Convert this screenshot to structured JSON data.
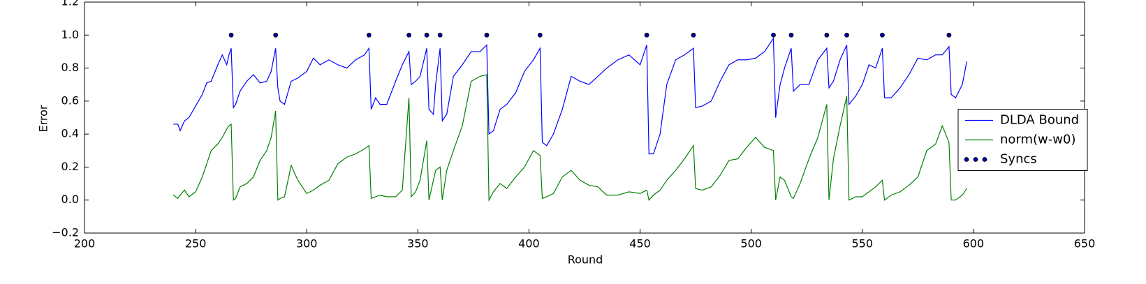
{
  "chart_data": {
    "type": "line",
    "xlabel": "Round",
    "ylabel": "Error",
    "xlim": [
      200,
      650
    ],
    "ylim": [
      -0.2,
      1.2
    ],
    "xticks": [
      200,
      250,
      300,
      350,
      400,
      450,
      500,
      550,
      600,
      650
    ],
    "yticks": [
      {
        "value": -0.2,
        "label": "−0.2"
      },
      {
        "value": 0,
        "label": "0.0"
      },
      0.2,
      0.4,
      0.6,
      0.8,
      {
        "value": 1,
        "label": "1.0"
      },
      1.2
    ],
    "legend": "center right",
    "x": [
      240,
      242,
      243,
      245,
      247,
      250,
      253,
      255,
      257,
      260,
      262,
      264,
      265,
      266,
      267,
      268,
      270,
      273,
      276,
      279,
      282,
      284,
      286,
      287,
      288,
      290,
      293,
      296,
      300,
      303,
      306,
      310,
      314,
      318,
      322,
      326,
      328,
      329,
      331,
      333,
      336,
      340,
      343,
      346,
      347,
      349,
      351,
      354,
      355,
      357,
      358,
      360,
      361,
      363,
      366,
      370,
      374,
      378,
      381,
      382,
      384,
      387,
      390,
      394,
      398,
      402,
      405,
      406,
      408,
      411,
      415,
      419,
      423,
      427,
      431,
      435,
      440,
      445,
      450,
      453,
      454,
      456,
      459,
      462,
      466,
      470,
      474,
      475,
      478,
      482,
      486,
      490,
      494,
      498,
      502,
      506,
      510,
      511,
      513,
      515,
      518,
      519,
      522,
      526,
      530,
      534,
      535,
      537,
      540,
      543,
      544,
      547,
      550,
      553,
      556,
      559,
      560,
      563,
      567,
      571,
      575,
      579,
      583,
      586,
      589,
      590,
      592,
      595,
      597
    ],
    "series": [
      {
        "name": "DLDA Bound",
        "color": "#0000ff",
        "values": [
          0.46,
          0.46,
          0.42,
          0.48,
          0.5,
          0.57,
          0.64,
          0.71,
          0.72,
          0.82,
          0.88,
          0.82,
          0.88,
          0.92,
          0.56,
          0.58,
          0.66,
          0.72,
          0.76,
          0.71,
          0.72,
          0.78,
          0.92,
          0.68,
          0.6,
          0.58,
          0.72,
          0.74,
          0.78,
          0.86,
          0.82,
          0.85,
          0.82,
          0.8,
          0.85,
          0.88,
          0.92,
          0.55,
          0.62,
          0.58,
          0.58,
          0.72,
          0.82,
          0.9,
          0.7,
          0.72,
          0.75,
          0.92,
          0.55,
          0.52,
          0.7,
          0.92,
          0.48,
          0.52,
          0.75,
          0.82,
          0.9,
          0.9,
          0.94,
          0.4,
          0.42,
          0.55,
          0.58,
          0.65,
          0.78,
          0.85,
          0.92,
          0.35,
          0.33,
          0.4,
          0.55,
          0.75,
          0.72,
          0.7,
          0.75,
          0.8,
          0.85,
          0.88,
          0.82,
          0.94,
          0.28,
          0.28,
          0.4,
          0.7,
          0.85,
          0.88,
          0.92,
          0.56,
          0.57,
          0.6,
          0.72,
          0.82,
          0.85,
          0.85,
          0.86,
          0.9,
          0.98,
          0.5,
          0.7,
          0.8,
          0.92,
          0.66,
          0.7,
          0.7,
          0.85,
          0.92,
          0.68,
          0.72,
          0.85,
          0.94,
          0.58,
          0.63,
          0.7,
          0.82,
          0.8,
          0.92,
          0.62,
          0.62,
          0.68,
          0.76,
          0.86,
          0.85,
          0.88,
          0.88,
          0.93,
          0.64,
          0.62,
          0.7,
          0.84
        ]
      },
      {
        "name": "norm(w-w0)",
        "color": "#008000",
        "values": [
          0.03,
          0.01,
          0.03,
          0.06,
          0.02,
          0.05,
          0.14,
          0.22,
          0.3,
          0.34,
          0.38,
          0.43,
          0.45,
          0.46,
          0.0,
          0.01,
          0.08,
          0.1,
          0.14,
          0.24,
          0.3,
          0.38,
          0.54,
          0.0,
          0.01,
          0.02,
          0.21,
          0.12,
          0.04,
          0.06,
          0.09,
          0.12,
          0.22,
          0.26,
          0.28,
          0.31,
          0.33,
          0.01,
          0.02,
          0.03,
          0.02,
          0.02,
          0.06,
          0.62,
          0.02,
          0.05,
          0.12,
          0.36,
          0.0,
          0.12,
          0.18,
          0.2,
          0.0,
          0.18,
          0.3,
          0.45,
          0.72,
          0.75,
          0.76,
          0.0,
          0.05,
          0.1,
          0.07,
          0.14,
          0.2,
          0.3,
          0.27,
          0.01,
          0.02,
          0.04,
          0.14,
          0.18,
          0.12,
          0.09,
          0.08,
          0.03,
          0.03,
          0.05,
          0.04,
          0.06,
          0.0,
          0.03,
          0.06,
          0.12,
          0.18,
          0.25,
          0.33,
          0.07,
          0.06,
          0.08,
          0.15,
          0.24,
          0.25,
          0.32,
          0.38,
          0.32,
          0.3,
          0.0,
          0.14,
          0.12,
          0.02,
          0.01,
          0.1,
          0.25,
          0.38,
          0.58,
          0.0,
          0.25,
          0.45,
          0.63,
          0.0,
          0.02,
          0.02,
          0.05,
          0.08,
          0.12,
          0.0,
          0.03,
          0.05,
          0.09,
          0.14,
          0.3,
          0.34,
          0.45,
          0.35,
          0.0,
          0.0,
          0.03,
          0.07
        ]
      },
      {
        "name": "Syncs",
        "color": "#0000aa",
        "type": "scatter",
        "x": [
          266,
          286,
          328,
          346,
          354,
          360,
          381,
          405,
          453,
          474,
          510,
          518,
          534,
          543,
          559,
          589
        ],
        "values": [
          1,
          1,
          1,
          1,
          1,
          1,
          1,
          1,
          1,
          1,
          1,
          1,
          1,
          1,
          1,
          1
        ]
      }
    ]
  }
}
